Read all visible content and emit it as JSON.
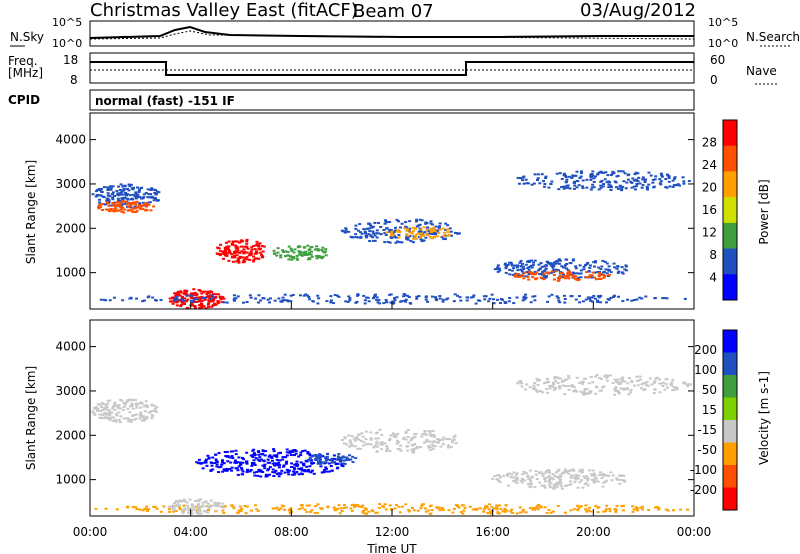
{
  "header": {
    "site": "Christmas Valley East (fitACF)",
    "beam": "Beam 07",
    "date": "03/Aug/2012"
  },
  "summary_panel": {
    "left_label": "N.Sky",
    "right_label": "N.Search",
    "left_ticks": [
      "10^5",
      "10^0"
    ],
    "right_ticks": [
      "10^5",
      "10^0"
    ]
  },
  "freq_panel": {
    "left_label_1": "Freq.",
    "left_label_2": "[MHz]",
    "right_label": "Nave",
    "left_ticks": [
      "18",
      "8"
    ],
    "right_ticks": [
      "60",
      "0"
    ]
  },
  "cpid": {
    "label": "CPID",
    "value": "normal (fast) -151 IF"
  },
  "chart_data": [
    {
      "type": "heatmap",
      "panel": "power",
      "ylabel": "Slant Range [km]",
      "xlabel": "",
      "y_ticks": [
        "1000",
        "2000",
        "3000",
        "4000"
      ],
      "ylim": [
        180,
        4600
      ],
      "colorbar_label": "Power [dB]",
      "colorbar_ticks": [
        "28",
        "24",
        "20",
        "16",
        "12",
        "8",
        "4"
      ],
      "colors": [
        "#ff0000",
        "#ff4f00",
        "#ff9f00",
        "#cfe000",
        "#3f9f3f",
        "#2050c0",
        "#0000ff"
      ]
    },
    {
      "type": "heatmap",
      "panel": "velocity",
      "ylabel": "Slant Range [km]",
      "xlabel": "Time UT",
      "y_ticks": [
        "1000",
        "2000",
        "3000",
        "4000"
      ],
      "ylim": [
        180,
        4600
      ],
      "x_ticks": [
        "00:00",
        "04:00",
        "08:00",
        "12:00",
        "16:00",
        "20:00",
        "00:00"
      ],
      "colorbar_label": "Velocity [m s-1]",
      "colorbar_ticks": [
        "200",
        "100",
        "50",
        "15",
        "-15",
        "-50",
        "-100",
        "-200"
      ],
      "colors": [
        "#0000ff",
        "#2050c0",
        "#3f9f3f",
        "#7fd000",
        "#c8c8c8",
        "#ff9f00",
        "#ff4f00",
        "#ff0000"
      ]
    }
  ]
}
